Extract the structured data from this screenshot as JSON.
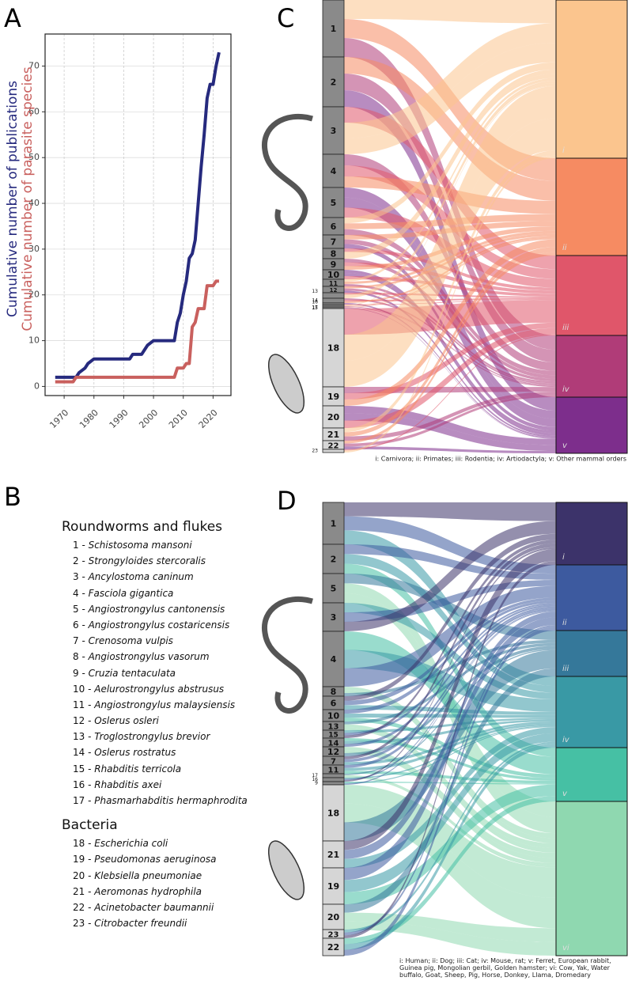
{
  "chart_data": {
    "type": "line",
    "x": [
      1967,
      1973,
      1974,
      1975,
      1977,
      1978,
      1980,
      1992,
      1993,
      1996,
      1997,
      1998,
      2000,
      2006,
      2007,
      2008,
      2009,
      2010,
      2011,
      2012,
      2013,
      2014,
      2015,
      2016,
      2017,
      2018,
      2019,
      2020,
      2021,
      2022
    ],
    "series": [
      {
        "name": "Cumulative number of publications",
        "color": "#262a7e",
        "values": [
          2,
          2,
          2,
          3,
          4,
          5,
          6,
          6,
          7,
          7,
          8,
          9,
          10,
          10,
          10,
          14,
          16,
          20,
          23,
          28,
          29,
          32,
          40,
          48,
          55,
          63,
          66,
          66,
          70,
          73
        ]
      },
      {
        "name": "Cumulative number of parasite species",
        "color": "#c9605e",
        "values": [
          1,
          1,
          2,
          2,
          2,
          2,
          2,
          2,
          2,
          2,
          2,
          2,
          2,
          2,
          2,
          4,
          4,
          4,
          5,
          5,
          13,
          14,
          17,
          17,
          17,
          22,
          22,
          22,
          23,
          23
        ]
      }
    ],
    "xlim": [
      1963.6,
      2026
    ],
    "xticks": [
      1970,
      1980,
      1990,
      2000,
      2010,
      2020
    ],
    "ylim": [
      -2,
      77
    ],
    "yticks": [
      0,
      10,
      20,
      30,
      40,
      50,
      60,
      70
    ],
    "grid": true
  },
  "panel_labels": [
    "A",
    "B",
    "C",
    "D"
  ],
  "legend": {
    "groups": [
      {
        "title": "Roundworms and flukes",
        "items": [
          "1 - Schistosoma mansoni",
          "2 - Strongyloides stercoralis",
          "3 - Ancylostoma caninum",
          "4 - Fasciola gigantica",
          "5 - Angiostrongylus cantonensis",
          "6 - Angiostrongylus costaricensis",
          "7 - Crenosoma vulpis",
          "8 - Angiostrongylus vasorum",
          "9 - Cruzia tentaculata",
          "10 - Aelurostrongylus abstrusus",
          "11 - Angiostrongylus malaysiensis",
          "12 - Oslerus osleri",
          "13 - Troglostrongylus brevior",
          "14 - Oslerus rostratus",
          "15 - Rhabditis terricola",
          "16 - Rhabditis axei",
          "17 - Phasmarhabditis hermaphrodita"
        ]
      },
      {
        "title": "Bacteria",
        "items": [
          "18 - Escherichia coli",
          "19 - Pseudomonas aeruginosa",
          "20 - Klebsiella pneumoniae",
          "21 - Aeromonas hydrophila",
          "22 - Acinetobacter baumannii",
          "23 - Citrobacter freundii"
        ]
      }
    ]
  },
  "sankey_c": {
    "left_nodes": [
      "1",
      "2",
      "3",
      "4",
      "5",
      "6",
      "7",
      "8",
      "9",
      "10",
      "11",
      "12",
      "13",
      "14",
      "15",
      "16",
      "17",
      "18",
      "19",
      "20",
      "21",
      "22",
      "23"
    ],
    "right_nodes": [
      "i",
      "ii",
      "iii",
      "iv",
      "v"
    ],
    "right_colors": [
      "#fbc58e",
      "#f68b62",
      "#e0566a",
      "#b03c78",
      "#7d2e8c"
    ],
    "footnote": "i: Carnivora; ii: Primates; iii: Rodentia; iv: Artiodactyla; v: Other mammal orders"
  },
  "sankey_d": {
    "left_nodes": [
      "1",
      "2",
      "5",
      "3",
      "4",
      "8",
      "6",
      "10",
      "13",
      "15",
      "14",
      "12",
      "7",
      "11",
      "16",
      "17",
      "9",
      "18",
      "21",
      "19",
      "20",
      "23",
      "22"
    ],
    "right_nodes": [
      "i",
      "ii",
      "iii",
      "iv",
      "v",
      "vi"
    ],
    "right_colors": [
      "#3c336a",
      "#3d5a9f",
      "#35789a",
      "#3999a5",
      "#46c0a4",
      "#8fd8b0"
    ],
    "footnote": "i: Human; ii: Dog; iii: Cat; iv: Mouse, rat; v: Ferret, European rabbit, Guinea pig, Mongolian gerbil, Golden hamster; vi: Cow, Yak, Water buffalo, Goat, Sheep, Pig, Horse, Donkey, Llama, Dromedary"
  }
}
